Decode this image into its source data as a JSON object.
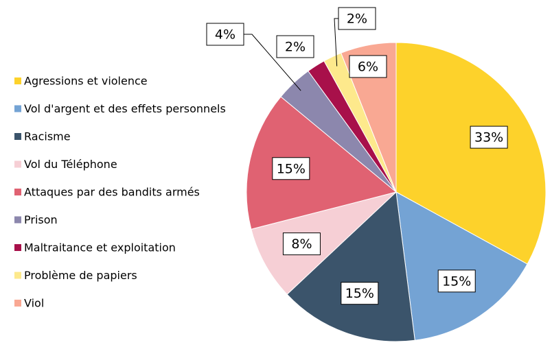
{
  "chart_data": {
    "type": "pie",
    "categories": [
      "Agressions et violence",
      "Vol d'argent et des effets personnels",
      "Racisme",
      "Vol du Téléphone",
      "Attaques par des bandits armés",
      "Prison",
      "Maltraitance et exploitation",
      "Problème de papiers",
      "Viol"
    ],
    "values": [
      33,
      15,
      15,
      8,
      15,
      4,
      2,
      2,
      6
    ],
    "value_labels": [
      "33%",
      "15%",
      "15%",
      "8%",
      "15%",
      "4%",
      "2%",
      "2%",
      "6%"
    ],
    "colors": [
      "#fdd22b",
      "#74a3d4",
      "#3b546b",
      "#f6cfd5",
      "#e06272",
      "#8c87ad",
      "#a8104a",
      "#fde98c",
      "#f9a893"
    ],
    "legend": "left"
  }
}
